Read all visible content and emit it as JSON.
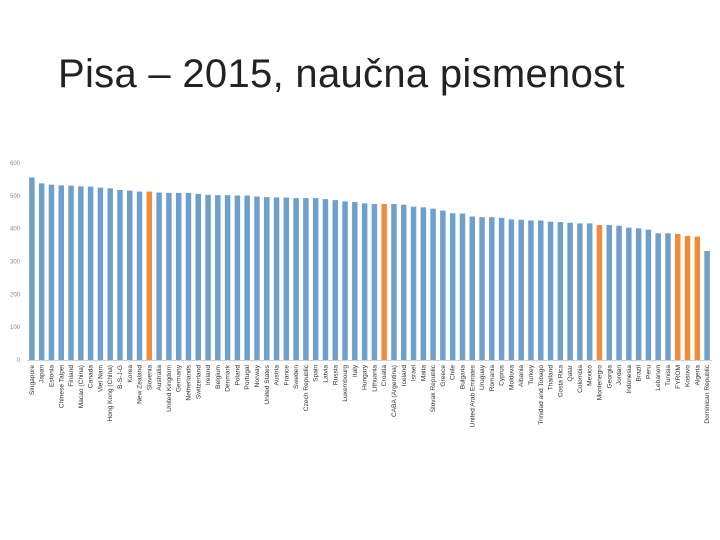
{
  "slide": {
    "title": "Pisa – 2015, naučna pismenost"
  },
  "chart_data": {
    "type": "bar",
    "title": "",
    "xlabel": "",
    "ylabel": "",
    "ylim": [
      0,
      600
    ],
    "yticks": [
      0,
      100,
      200,
      300,
      400,
      500,
      600
    ],
    "grid": false,
    "legend": "none",
    "colors": {
      "default": "#6f9fcb",
      "highlight": "#f08a3c",
      "axis": "#d0d0d0",
      "tick_label": "#888888",
      "category_label": "#333333"
    },
    "categories": [
      "Singapore",
      "Japan",
      "Estonia",
      "Chinese Taipei",
      "Finland",
      "Macao (China)",
      "Canada",
      "Viet Nam",
      "Hong Kong (China)",
      "B-S-J-G",
      "Korea",
      "New Zealand",
      "Slovenia",
      "Australia",
      "United Kingdom",
      "Germany",
      "Netherlands",
      "Switzerland",
      "Ireland",
      "Belgium",
      "Denmark",
      "Poland",
      "Portugal",
      "Norway",
      "United States",
      "Austria",
      "France",
      "Sweden",
      "Czech Republic",
      "Spain",
      "Latvia",
      "Russia",
      "Luxembourg",
      "Italy",
      "Hungary",
      "Lithuania",
      "Croatia",
      "CABA (Argentina)",
      "Iceland",
      "Israel",
      "Malta",
      "Slovak Republic",
      "Greece",
      "Chile",
      "Bulgaria",
      "United Arab Emirates",
      "Uruguay",
      "Romania",
      "Cyprus",
      "Moldova",
      "Albania",
      "Turkey",
      "Trinidad and Tobago",
      "Thailand",
      "Costa Rica",
      "Qatar",
      "Colombia",
      "Mexico",
      "Montenegro",
      "Georgia",
      "Jordan",
      "Indonesia",
      "Brazil",
      "Peru",
      "Lebanon",
      "Tunisia",
      "FYROM",
      "Kosovo",
      "Algeria",
      "Dominican Republic"
    ],
    "values": [
      556,
      538,
      534,
      532,
      531,
      529,
      528,
      525,
      523,
      518,
      516,
      513,
      513,
      510,
      509,
      509,
      509,
      506,
      503,
      502,
      502,
      501,
      501,
      498,
      496,
      495,
      495,
      493,
      493,
      493,
      490,
      487,
      483,
      481,
      477,
      475,
      475,
      475,
      473,
      467,
      465,
      461,
      455,
      447,
      446,
      437,
      435,
      435,
      433,
      428,
      427,
      425,
      425,
      421,
      420,
      418,
      416,
      416,
      411,
      411,
      409,
      403,
      401,
      397,
      386,
      386,
      384,
      378,
      376,
      332
    ],
    "highlighted": [
      "Slovenia",
      "Croatia",
      "Montenegro",
      "FYROM",
      "Kosovo",
      "Algeria"
    ]
  }
}
